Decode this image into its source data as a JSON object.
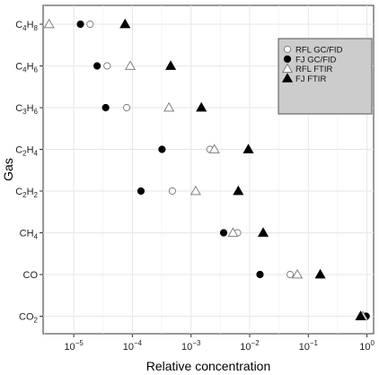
{
  "chart_data": {
    "type": "scatter",
    "title": "",
    "xlabel": "Relative concentration",
    "ylabel": "Gas",
    "x_scale": "log",
    "xlim": [
      3e-06,
      1.3
    ],
    "x_ticks": [
      {
        "value": 1e-05,
        "label_base": "10",
        "label_exp": "−5"
      },
      {
        "value": 0.0001,
        "label_base": "10",
        "label_exp": "−4"
      },
      {
        "value": 0.001,
        "label_base": "10",
        "label_exp": "−3"
      },
      {
        "value": 0.01,
        "label_base": "10",
        "label_exp": "−2"
      },
      {
        "value": 0.1,
        "label_base": "10",
        "label_exp": "−1"
      },
      {
        "value": 1,
        "label_base": "10",
        "label_exp": "0"
      }
    ],
    "categories": [
      {
        "base": "C",
        "sub1": "4",
        "mid": "H",
        "sub2": "8"
      },
      {
        "base": "C",
        "sub1": "4",
        "mid": "H",
        "sub2": "6"
      },
      {
        "base": "C",
        "sub1": "3",
        "mid": "H",
        "sub2": "6"
      },
      {
        "base": "C",
        "sub1": "2",
        "mid": "H",
        "sub2": "4"
      },
      {
        "base": "C",
        "sub1": "2",
        "mid": "H",
        "sub2": "2"
      },
      {
        "base": "CH",
        "sub1": "4",
        "mid": "",
        "sub2": ""
      },
      {
        "base": "CO",
        "sub1": "",
        "mid": "",
        "sub2": ""
      },
      {
        "base": "CO",
        "sub1": "2",
        "mid": "",
        "sub2": ""
      }
    ],
    "grid": true,
    "legend_position": "top-right",
    "series": [
      {
        "name": "RFL GC/FID",
        "marker": "open-circle",
        "color": "#808080",
        "values": [
          1.9e-05,
          3.7e-05,
          8e-05,
          0.0021,
          0.00048,
          0.0062,
          0.049,
          0.92
        ]
      },
      {
        "name": "FJ GC/FID",
        "marker": "filled-circle",
        "color": "#000000",
        "values": [
          1.3e-05,
          2.5e-05,
          3.5e-05,
          0.00032,
          0.00014,
          0.0036,
          0.015,
          0.97
        ]
      },
      {
        "name": "RFL FTIR",
        "marker": "open-triangle",
        "color": "#808080",
        "values": [
          3.8e-06,
          9.2e-05,
          0.00042,
          0.0025,
          0.0012,
          0.0052,
          0.065,
          0.85
        ]
      },
      {
        "name": "FJ FTIR",
        "marker": "filled-triangle",
        "color": "#000000",
        "values": [
          7.5e-05,
          0.00045,
          0.0015,
          0.0095,
          0.0064,
          0.017,
          0.16,
          0.78
        ]
      }
    ]
  }
}
